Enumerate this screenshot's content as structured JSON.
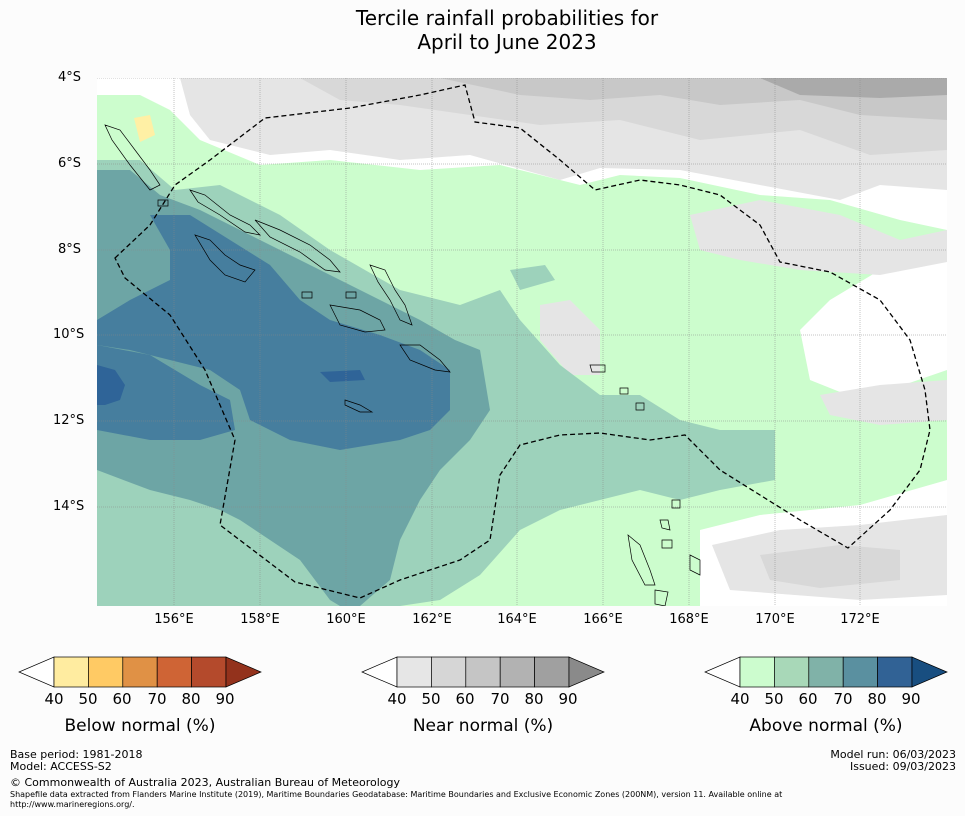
{
  "title": {
    "line1": "Tercile rainfall probabilities for",
    "line2": "April to June 2023"
  },
  "map": {
    "lat_labels": [
      "4°S",
      "6°S",
      "8°S",
      "10°S",
      "12°S",
      "14°S"
    ],
    "lon_labels": [
      "156°E",
      "158°E",
      "160°E",
      "162°E",
      "164°E",
      "166°E",
      "168°E",
      "170°E",
      "172°E"
    ],
    "colors": {
      "below_40_50": "#fff0a5",
      "near_40_50": "#e5e5e5",
      "near_50_60": "#d8d8d8",
      "near_60_70": "#c8c8c8",
      "near_70_80": "#aaaaaa",
      "above_40_50": "#ccfdcd",
      "above_50_60": "#9dd2bb",
      "above_60_70": "#6da5a5",
      "above_70_80": "#467e9e",
      "above_80_90": "#2f6498"
    }
  },
  "colorbars": {
    "below": {
      "title": "Below normal (%)",
      "ticks": [
        "40",
        "50",
        "60",
        "70",
        "80",
        "90"
      ],
      "colors": [
        "#ffffff",
        "#ffeca0",
        "#ffca64",
        "#e09145",
        "#cf6435",
        "#b44a2c",
        "#93321c"
      ]
    },
    "near": {
      "title": "Near normal (%)",
      "ticks": [
        "40",
        "50",
        "60",
        "70",
        "80",
        "90"
      ],
      "colors": [
        "#ffffff",
        "#e6e6e6",
        "#d6d6d6",
        "#c5c5c5",
        "#b2b2b2",
        "#a0a0a0",
        "#8a8a8a"
      ]
    },
    "above": {
      "title": "Above normal (%)",
      "ticks": [
        "40",
        "50",
        "60",
        "70",
        "80",
        "90"
      ],
      "colors": [
        "#ffffff",
        "#ccfcce",
        "#a8d8b8",
        "#80b2a8",
        "#5a90a0",
        "#316295",
        "#184e80"
      ]
    }
  },
  "footer": {
    "base_period": "Base period: 1981-2018",
    "model": "Model: ACCESS-S2",
    "model_run": "Model run: 06/03/2023",
    "issued": "Issued: 09/03/2023",
    "copyright": "© Commonwealth of Australia 2023, Australian Bureau of Meteorology",
    "shapefile_line1": "Shapefile data extracted from Flanders Marine Institute (2019), Maritime Boundaries Geodatabase: Maritime Boundaries and Exclusive Economic Zones (200NM), version 11. Available online at",
    "shapefile_line2": "http://www.marineregions.org/."
  }
}
